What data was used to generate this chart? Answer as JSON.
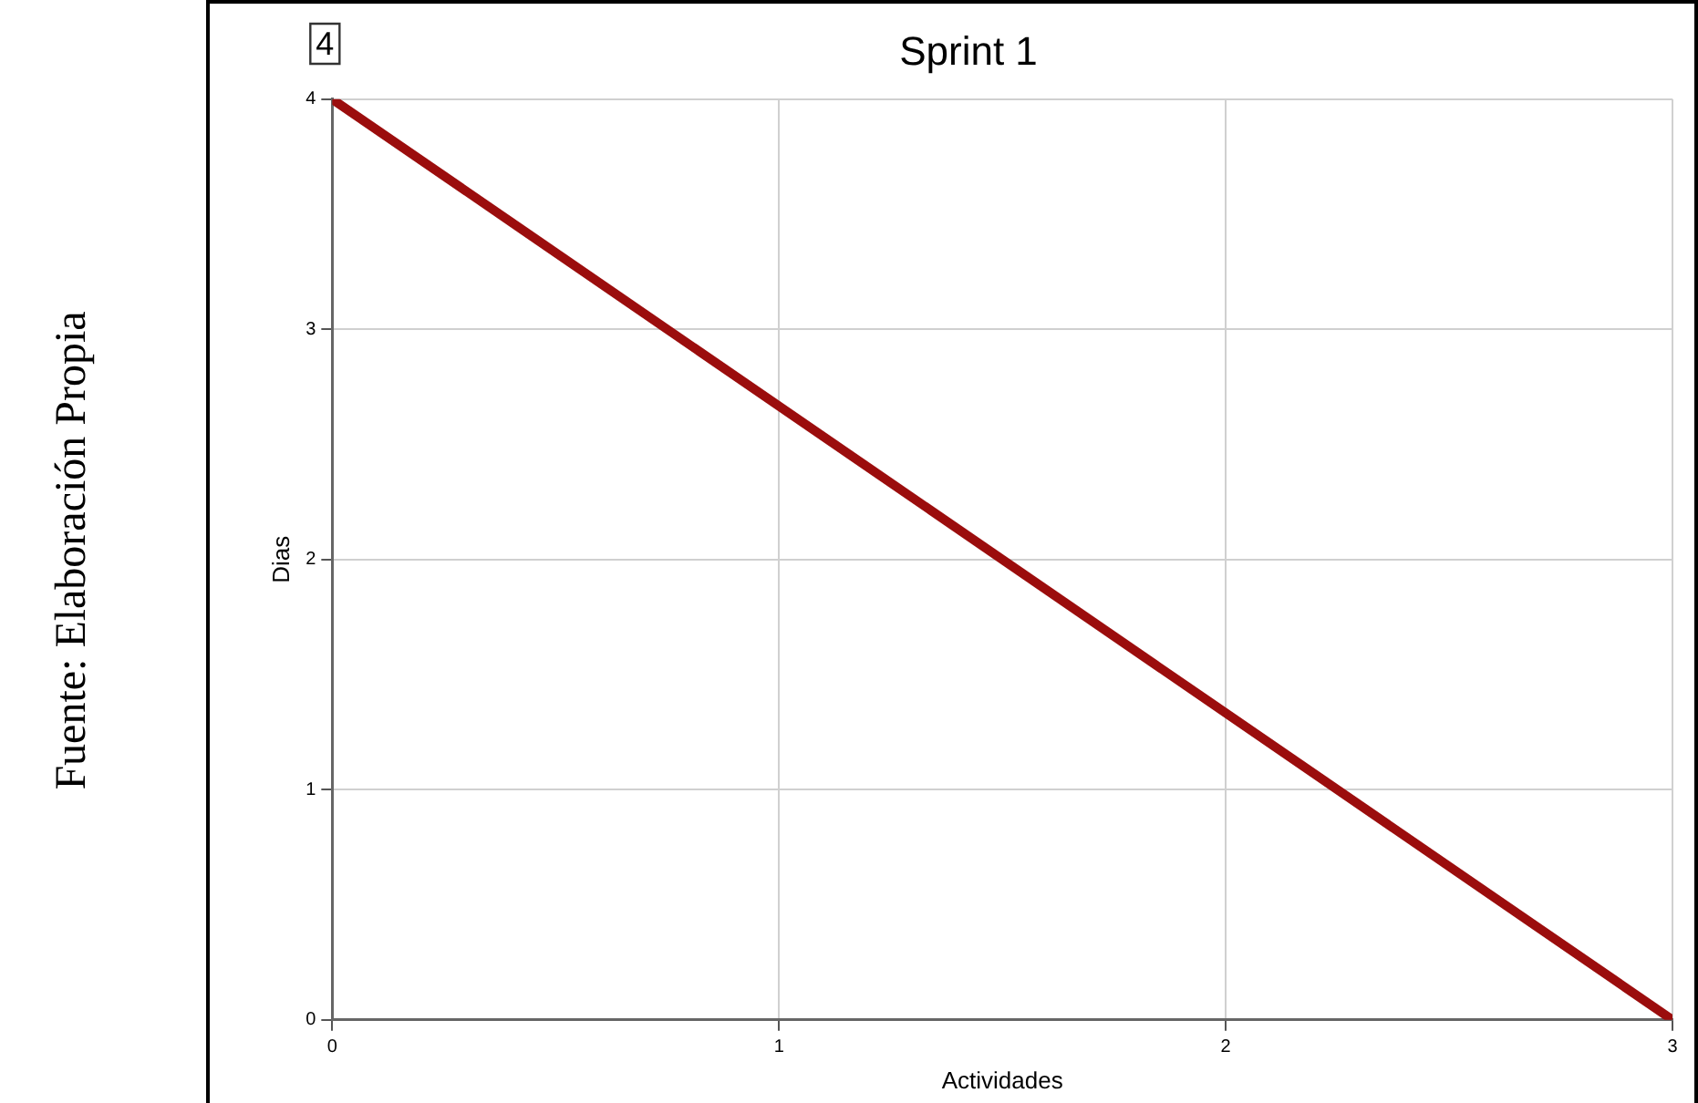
{
  "chart_data": {
    "type": "line",
    "title": "Sprint 1",
    "xlabel": "Actividades",
    "ylabel": "Dias",
    "annotations": [
      "4",
      "Fuente: Elaboración Propia"
    ],
    "x": [
      0,
      3
    ],
    "series": [
      {
        "color": "#9b0d0d",
        "values": [
          4,
          0
        ]
      }
    ],
    "xlim": [
      0,
      3
    ],
    "xticks": [
      0,
      1,
      2,
      3
    ],
    "ylim": [
      0,
      4
    ],
    "yticks": [
      0,
      1,
      2,
      3,
      4
    ],
    "grid": true,
    "legend": false,
    "marker": "none",
    "line_style": "solid"
  }
}
